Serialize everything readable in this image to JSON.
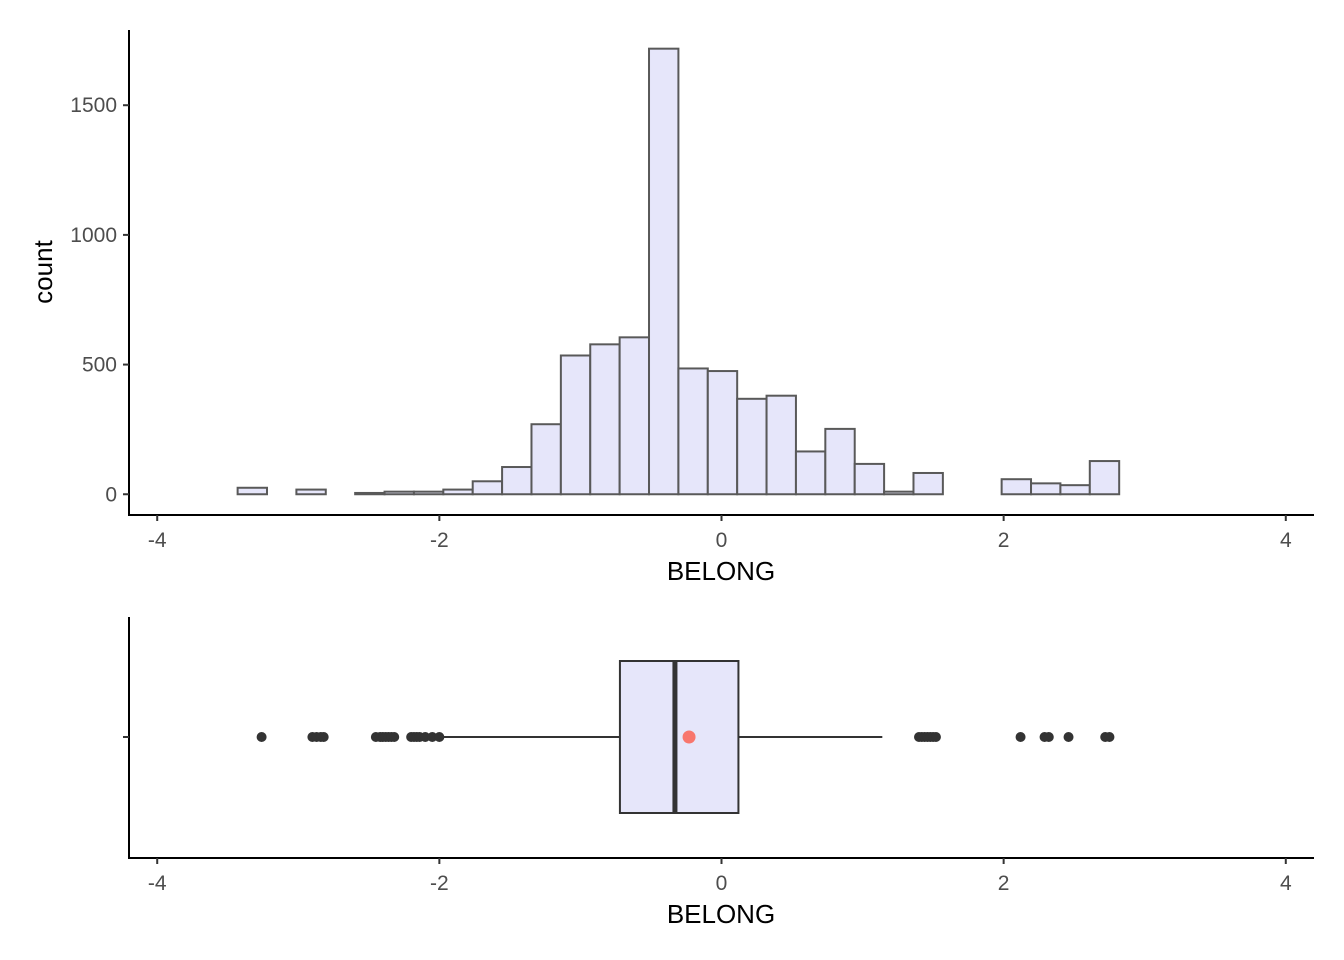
{
  "chart_data": [
    {
      "type": "histogram",
      "xlabel": "BELONG",
      "ylabel": "count",
      "xlim": [
        -4.2,
        4.2
      ],
      "ylim": [
        -80,
        1790
      ],
      "x_ticks": [
        -4,
        -2,
        0,
        2,
        4
      ],
      "x_tick_labels": [
        "-4",
        "-2",
        "0",
        "2",
        "4"
      ],
      "y_ticks": [
        0,
        500,
        1000,
        1500
      ],
      "y_tick_labels": [
        "0",
        "500",
        "1000",
        "1500"
      ],
      "bin_start": -3.43,
      "bin_width": 0.2083,
      "counts": [
        25,
        0,
        18,
        0,
        5,
        10,
        10,
        18,
        50,
        105,
        270,
        535,
        578,
        605,
        1718,
        485,
        475,
        368,
        380,
        165,
        252,
        117,
        10,
        82,
        0,
        0,
        58,
        42,
        35,
        128
      ],
      "fill": "#e6e6fa",
      "outline": "#595959"
    },
    {
      "type": "boxplot",
      "xlabel": "BELONG",
      "xlim": [
        -4.2,
        4.2
      ],
      "x_ticks": [
        -4,
        -2,
        0,
        2,
        4
      ],
      "x_tick_labels": [
        "-4",
        "-2",
        "0",
        "2",
        "4"
      ],
      "q1": -0.72,
      "median": -0.33,
      "q3": 0.12,
      "whisker_low": -1.98,
      "whisker_high": 1.14,
      "mean": -0.23,
      "outliers": [
        -3.26,
        -2.9,
        -2.87,
        -2.84,
        -2.82,
        -2.45,
        -2.42,
        -2.4,
        -2.38,
        -2.36,
        -2.34,
        -2.32,
        -2.2,
        -2.18,
        -2.16,
        -2.14,
        -2.1,
        -2.05,
        -2.0,
        1.4,
        1.42,
        1.44,
        1.46,
        1.48,
        1.5,
        1.52,
        2.12,
        2.29,
        2.32,
        2.46,
        2.72,
        2.75
      ],
      "fill": "#e6e6fa",
      "mean_color": "#f8766d"
    }
  ]
}
